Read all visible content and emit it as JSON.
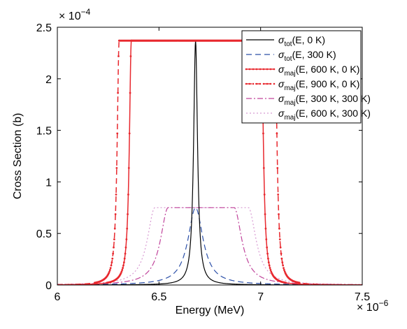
{
  "chart_data": {
    "type": "line",
    "title": "",
    "xlabel": "Energy (MeV)",
    "ylabel": "Cross Section (b)",
    "x_multiplier": "× 10",
    "x_multiplier_exp": "−6",
    "y_multiplier": "× 10",
    "y_multiplier_exp": "−4",
    "xlim": [
      6.0,
      7.5
    ],
    "ylim": [
      0,
      2.5
    ],
    "xticks": [
      6,
      6.5,
      7,
      7.5
    ],
    "xtick_labels": [
      "6",
      "6.5",
      "7",
      "7.5"
    ],
    "yticks": [
      0,
      0.5,
      1,
      1.5,
      2,
      2.5
    ],
    "ytick_labels": [
      "0",
      "0.5",
      "1",
      "1.5",
      "2",
      "2.5"
    ],
    "grid": false,
    "legend_position": "top-right",
    "series": [
      {
        "legend_sym": "σ",
        "legend_sub": "tot",
        "legend_rest": "(E, 0 K)",
        "color": "#000000",
        "dash": "",
        "width": 1.2,
        "kind": "peak",
        "center": 6.68,
        "peak": 2.37,
        "gamma": 0.0115
      },
      {
        "legend_sym": "σ",
        "legend_sub": "tot",
        "legend_rest": "(E, 300 K)",
        "color": "#2b4fa8",
        "dash": "8,5",
        "width": 1.2,
        "kind": "peak",
        "center": 6.68,
        "peak": 0.75,
        "gamma": 0.045
      },
      {
        "legend_sym": "σ",
        "legend_sub": "maj",
        "legend_rest": "(E, 600 K, 0 K)",
        "color": "#e8282e",
        "dash": "",
        "width": 1.5,
        "markers": true,
        "kind": "plateau",
        "left": 6.364,
        "right": 7.004,
        "peak": 2.37,
        "gamma": 0.0115
      },
      {
        "legend_sym": "σ",
        "legend_sub": "maj",
        "legend_rest": "(E, 900 K, 0 K)",
        "color": "#e8282e",
        "dash": "8,5",
        "width": 1.5,
        "markers": true,
        "kind": "plateau",
        "left": 6.304,
        "right": 7.071,
        "peak": 2.37,
        "gamma": 0.0115
      },
      {
        "legend_sym": "σ",
        "legend_sub": "maj",
        "legend_rest": "(E, 300 K, 300 K)",
        "color": "#c0449b",
        "dash": "8,3,2,3",
        "width": 1.2,
        "kind": "plateau",
        "left": 6.545,
        "right": 6.87,
        "peak": 0.75,
        "gamma": 0.045
      },
      {
        "legend_sym": "σ",
        "legend_sub": "maj",
        "legend_rest": "(E, 600 K, 300 K)",
        "color": "#d89ad2",
        "dash": "2,3",
        "width": 1.2,
        "kind": "plateau",
        "left": 6.48,
        "right": 6.94,
        "peak": 0.75,
        "gamma": 0.045
      }
    ]
  }
}
